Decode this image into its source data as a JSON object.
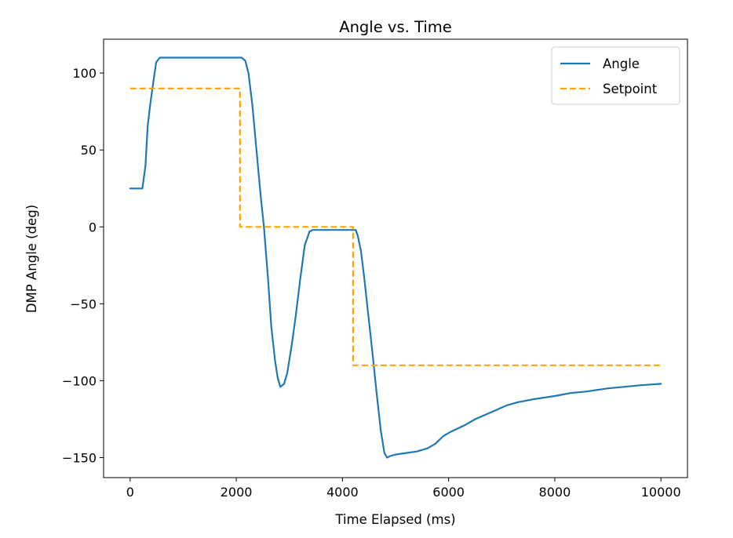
{
  "chart_data": {
    "type": "line",
    "title": "Angle vs. Time",
    "xlabel": "Time Elapsed (ms)",
    "ylabel": "DMP Angle (deg)",
    "xlim": [
      -500,
      10500
    ],
    "ylim": [
      -163,
      122
    ],
    "xticks": [
      0,
      2000,
      4000,
      6000,
      8000,
      10000
    ],
    "xtick_labels": [
      "0",
      "2000",
      "4000",
      "6000",
      "8000",
      "10000"
    ],
    "yticks": [
      100,
      50,
      0,
      -50,
      -100,
      -150
    ],
    "ytick_labels": [
      "100",
      "50",
      "0",
      "−50",
      "−100",
      "−150"
    ],
    "grid": false,
    "legend_position": "top-right",
    "series": [
      {
        "name": "Angle",
        "color": "#1f77b4",
        "style": "solid",
        "x": [
          0,
          230,
          290,
          330,
          380,
          440,
          490,
          560,
          640,
          900,
          1400,
          2100,
          2170,
          2230,
          2300,
          2380,
          2460,
          2520,
          2600,
          2660,
          2730,
          2780,
          2830,
          2900,
          2960,
          3040,
          3120,
          3200,
          3290,
          3380,
          3440,
          3600,
          4000,
          4250,
          4290,
          4350,
          4410,
          4480,
          4560,
          4640,
          4720,
          4790,
          4840,
          4900,
          5000,
          5200,
          5400,
          5600,
          5750,
          5900,
          6050,
          6300,
          6500,
          6700,
          6900,
          7100,
          7300,
          7600,
          8000,
          8300,
          8600,
          9000,
          9300,
          9600,
          10000
        ],
        "y": [
          25,
          25,
          40,
          65,
          80,
          95,
          107,
          110,
          110,
          110,
          110,
          110,
          108,
          100,
          80,
          50,
          20,
          0,
          -35,
          -65,
          -87,
          -98,
          -104,
          -102,
          -95,
          -78,
          -58,
          -35,
          -12,
          -3,
          -2,
          -2,
          -2,
          -2,
          -6,
          -16,
          -33,
          -55,
          -80,
          -107,
          -132,
          -147,
          -150,
          -149,
          -148,
          -147,
          -146,
          -144,
          -141,
          -136,
          -133,
          -129,
          -125,
          -122,
          -119,
          -116,
          -114,
          -112,
          -110,
          -108,
          -107,
          -105,
          -104,
          -103,
          -102
        ]
      },
      {
        "name": "Setpoint",
        "color": "#ffa500",
        "style": "dashed",
        "x": [
          0,
          2070,
          2070,
          4200,
          4200,
          10000
        ],
        "y": [
          90,
          90,
          0,
          0,
          -90,
          -90
        ]
      }
    ]
  }
}
